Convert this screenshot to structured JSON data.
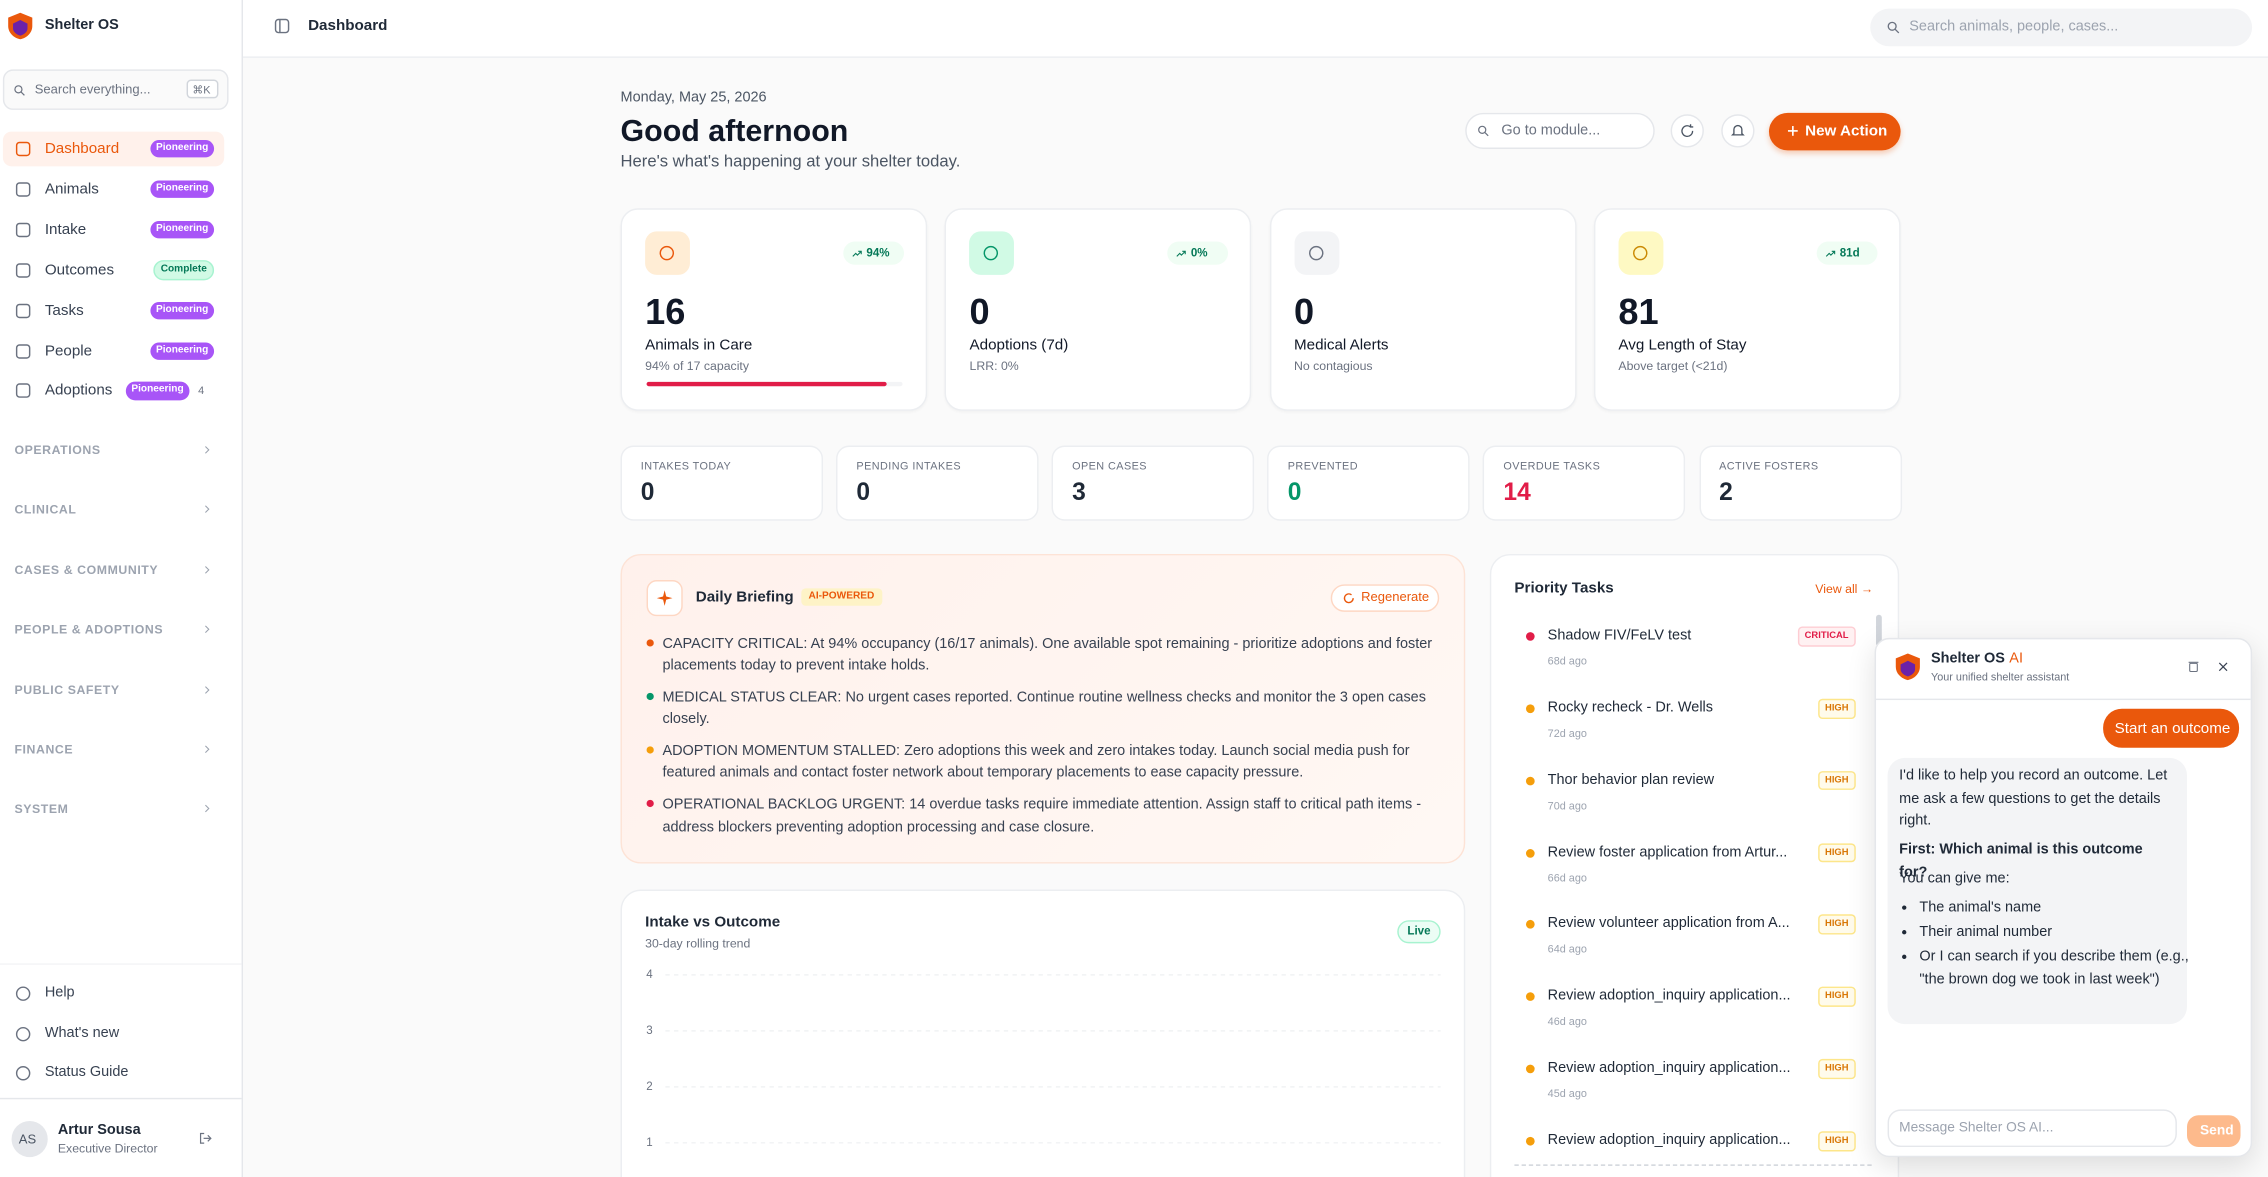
{
  "app": {
    "name": "Shelter OS"
  },
  "sidebar": {
    "search": "Search everything...",
    "shortcut": "⌘K",
    "nav": [
      {
        "label": "Dashboard",
        "badge": "Pioneering"
      },
      {
        "label": "Animals",
        "badge": "Pioneering"
      },
      {
        "label": "Intake",
        "badge": "Pioneering"
      },
      {
        "label": "Outcomes",
        "badge": "Complete"
      },
      {
        "label": "Tasks",
        "badge": "Pioneering"
      },
      {
        "label": "People",
        "badge": "Pioneering"
      },
      {
        "label": "Adoptions",
        "badge": "Pioneering",
        "count": "4"
      }
    ],
    "sections": [
      "OPERATIONS",
      "CLINICAL",
      "CASES & COMMUNITY",
      "PEOPLE & ADOPTIONS",
      "PUBLIC SAFETY",
      "FINANCE",
      "SYSTEM"
    ],
    "footer": [
      "Help",
      "What's new",
      "Status Guide"
    ],
    "user": {
      "initials": "AS",
      "name": "Artur Sousa",
      "role": "Executive Director"
    }
  },
  "topbar": {
    "page": "Dashboard",
    "search": "Search animals, people, cases..."
  },
  "header": {
    "date": "Monday, May 25, 2026",
    "greeting": "Good afternoon",
    "subtitle": "Here's what's happening at your shelter today.",
    "module_search": "Go to module...",
    "action": "New Action"
  },
  "stat_cards": [
    {
      "value": "16",
      "label": "Animals in Care",
      "sub": "94% of 17 capacity",
      "trend": "94%",
      "progress": 94,
      "color": "#ea580c",
      "bg": "#ffedd5"
    },
    {
      "value": "0",
      "label": "Adoptions (7d)",
      "sub": "LRR: 0%",
      "trend": "0%",
      "color": "#059669",
      "bg": "#d1fae5"
    },
    {
      "value": "0",
      "label": "Medical Alerts",
      "sub": "No contagious",
      "color": "#6b7280",
      "bg": "#f3f4f6"
    },
    {
      "value": "81",
      "label": "Avg Length of Stay",
      "sub": "Above target (<21d)",
      "trend": "81d",
      "color": "#ca8a04",
      "bg": "#fef9c3"
    }
  ],
  "metrics": [
    {
      "label": "INTAKES TODAY",
      "value": "0",
      "color": "#1f2937"
    },
    {
      "label": "PENDING INTAKES",
      "value": "0",
      "color": "#1f2937"
    },
    {
      "label": "OPEN CASES",
      "value": "3",
      "color": "#1f2937"
    },
    {
      "label": "PREVENTED",
      "value": "0",
      "color": "#059669"
    },
    {
      "label": "OVERDUE TASKS",
      "value": "14",
      "color": "#e11d48"
    },
    {
      "label": "ACTIVE FOSTERS",
      "value": "2",
      "color": "#1f2937"
    }
  ],
  "briefing": {
    "title": "Daily Briefing",
    "badge": "AI-POWERED",
    "action": "Regenerate",
    "items": [
      {
        "text": "CAPACITY CRITICAL: At 94% occupancy (16/17 animals). One available spot remaining - prioritize adoptions and foster placements today to prevent intake holds.",
        "color": "#ea580c"
      },
      {
        "text": "MEDICAL STATUS CLEAR: No urgent cases reported. Continue routine wellness checks and monitor the 3 open cases closely.",
        "color": "#059669"
      },
      {
        "text": "ADOPTION MOMENTUM STALLED: Zero adoptions this week and zero intakes today. Launch social media push for featured animals and contact foster network about temporary placements to ease capacity pressure.",
        "color": "#f59e0b"
      },
      {
        "text": "OPERATIONAL BACKLOG URGENT: 14 overdue tasks require immediate attention. Assign staff to critical path items - address blockers preventing adoption processing and case closure.",
        "color": "#e11d48"
      }
    ]
  },
  "intake_chart": {
    "title": "Intake vs Outcome",
    "subtitle": "30-day rolling trend",
    "badge": "Live",
    "ylim": [
      0,
      4
    ],
    "yticks": [
      4,
      3,
      2,
      1
    ]
  },
  "priority_tasks": {
    "title": "Priority Tasks",
    "link": "View all →",
    "items": [
      {
        "title": "Shadow FIV/FeLV test",
        "age": "68d ago",
        "priority": "CRITICAL"
      },
      {
        "title": "Rocky recheck - Dr. Wells",
        "age": "72d ago",
        "priority": "HIGH"
      },
      {
        "title": "Thor behavior plan review",
        "age": "70d ago",
        "priority": "HIGH"
      },
      {
        "title": "Review foster application from Artur...",
        "age": "66d ago",
        "priority": "HIGH"
      },
      {
        "title": "Review volunteer application from A...",
        "age": "64d ago",
        "priority": "HIGH"
      },
      {
        "title": "Review adoption_inquiry application...",
        "age": "46d ago",
        "priority": "HIGH"
      },
      {
        "title": "Review adoption_inquiry application...",
        "age": "45d ago",
        "priority": "HIGH"
      },
      {
        "title": "Review adoption_inquiry application...",
        "priority": "HIGH"
      }
    ]
  },
  "assistant": {
    "name": "Shelter OS",
    "tag": "AI",
    "subtitle": "Your unified shelter assistant",
    "user_message": "Start an outcome",
    "reply": {
      "intro": "I'd like to help you record an outcome. Let me ask a few questions to get the details right.",
      "question": "First: Which animal is this outcome for?",
      "lead": "You can give me:",
      "options": [
        "The animal's name",
        "Their animal number",
        "Or I can search if you describe them (e.g., \"the brown dog we took in last week\")"
      ]
    },
    "input": "Message Shelter OS AI...",
    "send": "Send"
  }
}
